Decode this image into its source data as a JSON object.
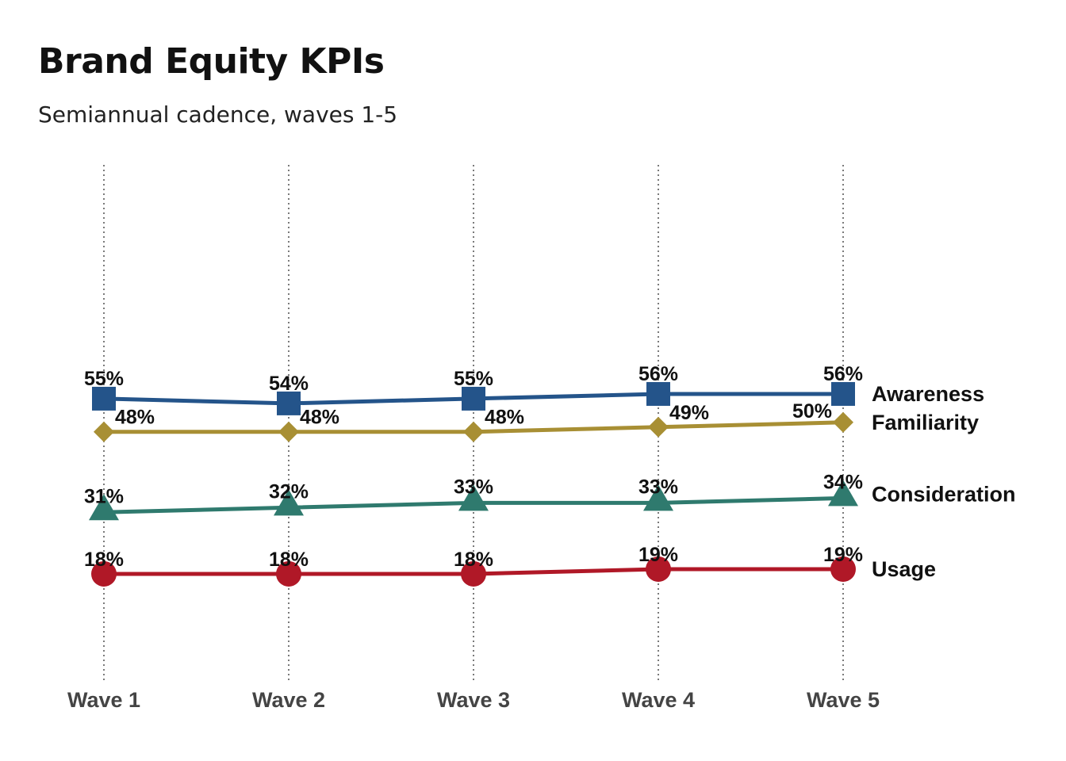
{
  "chart_data": {
    "type": "line",
    "title": "Brand Equity KPIs",
    "subtitle": "Semiannual cadence, waves 1-5",
    "categories": [
      "Wave 1",
      "Wave 2",
      "Wave 3",
      "Wave 4",
      "Wave 5"
    ],
    "ylim": [
      0,
      100
    ],
    "grid": "vertical dotted",
    "legend": "direct labels at right end",
    "series": [
      {
        "name": "Awareness",
        "values": [
          55,
          54,
          55,
          56,
          56
        ],
        "color": "#24548a",
        "marker": "square"
      },
      {
        "name": "Familiarity",
        "values": [
          48,
          48,
          48,
          49,
          50
        ],
        "color": "#a88f34",
        "marker": "diamond"
      },
      {
        "name": "Consideration",
        "values": [
          31,
          32,
          33,
          33,
          34
        ],
        "color": "#2f7a6e",
        "marker": "triangle"
      },
      {
        "name": "Usage",
        "values": [
          18,
          18,
          18,
          19,
          19
        ],
        "color": "#b01827",
        "marker": "circle"
      }
    ]
  }
}
